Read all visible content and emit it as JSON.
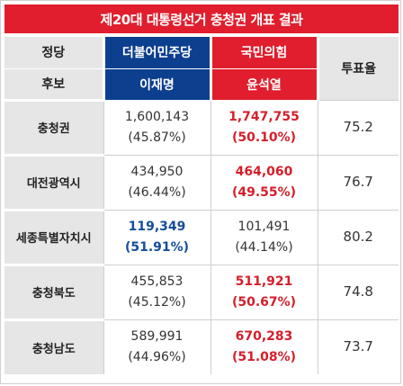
{
  "title": "제20대 대통령선거 충청권 개표 결과",
  "header": {
    "party_label": "정당",
    "candidate_label": "후보",
    "turnout_label": "투표율",
    "dem_party": "더불어민주당",
    "ppp_party": "국민의힘",
    "dem_candidate": "이재명",
    "ppp_candidate": "윤석열"
  },
  "colors": {
    "red": "#e01e2d",
    "blue": "#0d3f8f"
  },
  "rows": [
    {
      "region": "충청권",
      "dem_votes": "1,600,143",
      "dem_pct": "(45.87%)",
      "ppp_votes": "1,747,755",
      "ppp_pct": "(50.10%)",
      "turnout": "75.2",
      "winner": "ppp"
    },
    {
      "region": "대전광역시",
      "dem_votes": "434,950",
      "dem_pct": "(46.44%)",
      "ppp_votes": "464,060",
      "ppp_pct": "(49.55%)",
      "turnout": "76.7",
      "winner": "ppp"
    },
    {
      "region": "세종특별자치시",
      "dem_votes": "119,349",
      "dem_pct": "(51.91%)",
      "ppp_votes": "101,491",
      "ppp_pct": "(44.14%)",
      "turnout": "80.2",
      "winner": "dem"
    },
    {
      "region": "충청북도",
      "dem_votes": "455,853",
      "dem_pct": "(45.12%)",
      "ppp_votes": "511,921",
      "ppp_pct": "(50.67%)",
      "turnout": "74.8",
      "winner": "ppp"
    },
    {
      "region": "충청남도",
      "dem_votes": "589,991",
      "dem_pct": "(44.96%)",
      "ppp_votes": "670,283",
      "ppp_pct": "(51.08%)",
      "turnout": "73.7",
      "winner": "ppp"
    }
  ]
}
